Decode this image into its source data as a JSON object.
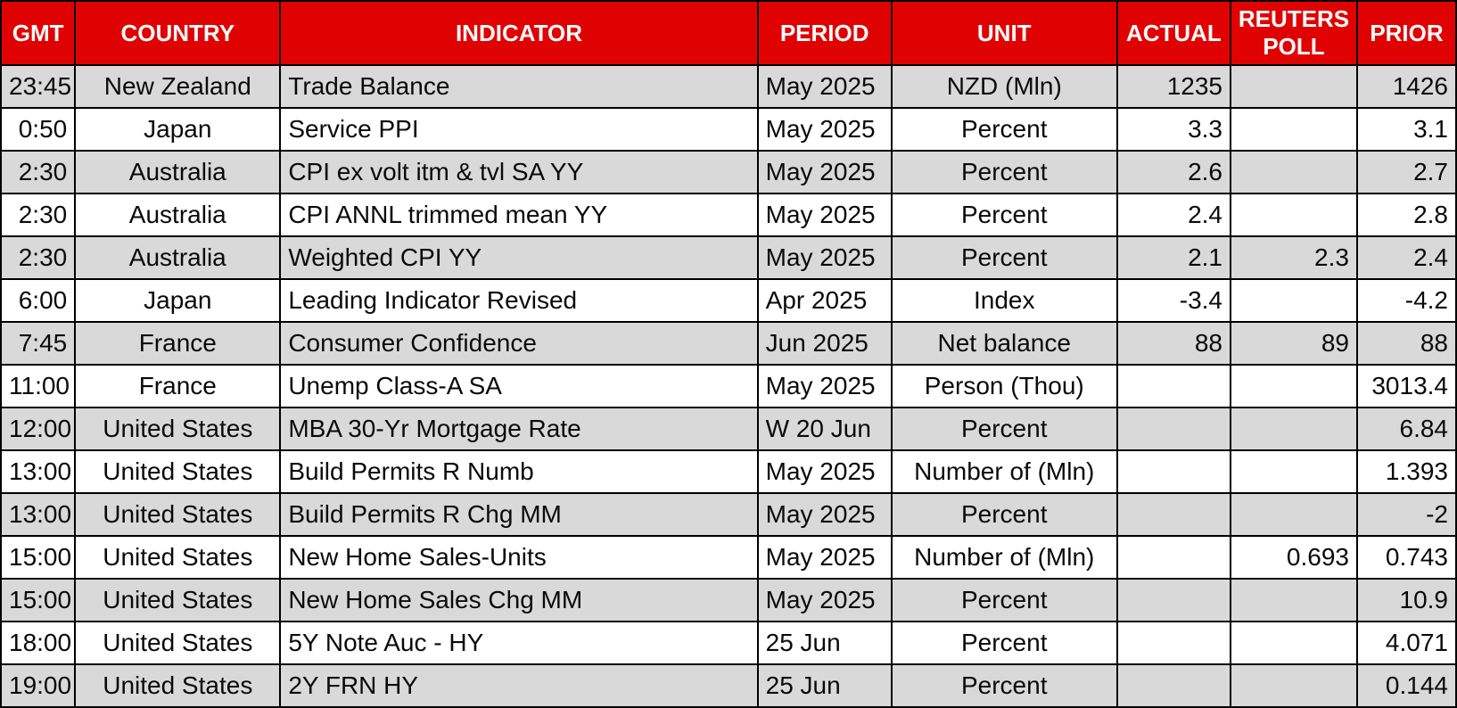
{
  "colors": {
    "header_bg": "#e00202",
    "header_text": "#ffffff",
    "row_alt_bg": "#d9d9d9",
    "row_bg": "#ffffff",
    "border": "#000000"
  },
  "table": {
    "columns": [
      {
        "key": "gmt",
        "label": "GMT",
        "align": "right",
        "width": "5.1%"
      },
      {
        "key": "country",
        "label": "COUNTRY",
        "align": "center",
        "width": "14.1%"
      },
      {
        "key": "indicator",
        "label": "INDICATOR",
        "align": "left",
        "width": "32.8%"
      },
      {
        "key": "period",
        "label": "PERIOD",
        "align": "left",
        "width": "9.2%"
      },
      {
        "key": "unit",
        "label": "UNIT",
        "align": "center",
        "width": "15.5%"
      },
      {
        "key": "actual",
        "label": "ACTUAL",
        "align": "right",
        "width": "7.8%"
      },
      {
        "key": "reuters_poll",
        "label": "REUTERS POLL",
        "align": "right",
        "width": "8.7%"
      },
      {
        "key": "prior",
        "label": "PRIOR",
        "align": "right",
        "width": "6.8%"
      }
    ],
    "rows": [
      {
        "gmt": "23:45",
        "country": "New Zealand",
        "indicator": "Trade Balance",
        "period": "May 2025",
        "unit": "NZD (Mln)",
        "actual": "1235",
        "reuters_poll": "",
        "prior": "1426"
      },
      {
        "gmt": "0:50",
        "country": "Japan",
        "indicator": "Service PPI",
        "period": "May 2025",
        "unit": "Percent",
        "actual": "3.3",
        "reuters_poll": "",
        "prior": "3.1"
      },
      {
        "gmt": "2:30",
        "country": "Australia",
        "indicator": "CPI ex volt itm & tvl SA YY",
        "period": "May 2025",
        "unit": "Percent",
        "actual": "2.6",
        "reuters_poll": "",
        "prior": "2.7"
      },
      {
        "gmt": "2:30",
        "country": "Australia",
        "indicator": "CPI ANNL trimmed mean YY",
        "period": "May 2025",
        "unit": "Percent",
        "actual": "2.4",
        "reuters_poll": "",
        "prior": "2.8"
      },
      {
        "gmt": "2:30",
        "country": "Australia",
        "indicator": "Weighted CPI YY",
        "period": "May 2025",
        "unit": "Percent",
        "actual": "2.1",
        "reuters_poll": "2.3",
        "prior": "2.4"
      },
      {
        "gmt": "6:00",
        "country": "Japan",
        "indicator": "Leading Indicator Revised",
        "period": "Apr 2025",
        "unit": "Index",
        "actual": "-3.4",
        "reuters_poll": "",
        "prior": "-4.2"
      },
      {
        "gmt": "7:45",
        "country": "France",
        "indicator": "Consumer Confidence",
        "period": "Jun 2025",
        "unit": "Net balance",
        "actual": "88",
        "reuters_poll": "89",
        "prior": "88"
      },
      {
        "gmt": "11:00",
        "country": "France",
        "indicator": "Unemp Class-A SA",
        "period": "May 2025",
        "unit": "Person (Thou)",
        "actual": "",
        "reuters_poll": "",
        "prior": "3013.4"
      },
      {
        "gmt": "12:00",
        "country": "United States",
        "indicator": "MBA 30-Yr Mortgage Rate",
        "period": "W 20 Jun",
        "unit": "Percent",
        "actual": "",
        "reuters_poll": "",
        "prior": "6.84"
      },
      {
        "gmt": "13:00",
        "country": "United States",
        "indicator": "Build Permits R Numb",
        "period": "May 2025",
        "unit": "Number of (Mln)",
        "actual": "",
        "reuters_poll": "",
        "prior": "1.393"
      },
      {
        "gmt": "13:00",
        "country": "United States",
        "indicator": "Build Permits R Chg MM",
        "period": "May 2025",
        "unit": "Percent",
        "actual": "",
        "reuters_poll": "",
        "prior": "-2"
      },
      {
        "gmt": "15:00",
        "country": "United States",
        "indicator": "New Home Sales-Units",
        "period": "May 2025",
        "unit": "Number of (Mln)",
        "actual": "",
        "reuters_poll": "0.693",
        "prior": "0.743"
      },
      {
        "gmt": "15:00",
        "country": "United States",
        "indicator": "New Home Sales Chg MM",
        "period": "May 2025",
        "unit": "Percent",
        "actual": "",
        "reuters_poll": "",
        "prior": "10.9"
      },
      {
        "gmt": "18:00",
        "country": "United States",
        "indicator": "5Y Note Auc - HY",
        "period": "25 Jun",
        "unit": "Percent",
        "actual": "",
        "reuters_poll": "",
        "prior": "4.071"
      },
      {
        "gmt": "19:00",
        "country": "United States",
        "indicator": "2Y FRN HY",
        "period": "25 Jun",
        "unit": "Percent",
        "actual": "",
        "reuters_poll": "",
        "prior": "0.144"
      }
    ]
  }
}
